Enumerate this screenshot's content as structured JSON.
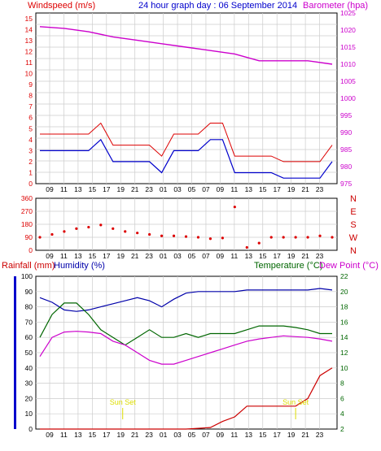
{
  "colors": {
    "wind_avg": "#0000cc",
    "wind_gust": "#dd0000",
    "barometer": "#cc00cc",
    "wind_dir": "#dd0000",
    "rainfall": "#cc0000",
    "humidity": "#0000aa",
    "temperature": "#006600",
    "dew_point": "#cc00cc",
    "sun_set": "#dddd00",
    "grid": "#cccccc"
  },
  "header": {
    "wind_label": "Windspeed (m/s)",
    "title": "24 hour graph day : 06 September 2014",
    "baro_label": "Barometer (hpa)"
  },
  "bottom_header": {
    "rain_label": "Rainfall (mm)",
    "humidity_label": "Humidity (%)",
    "temp_label": "Temperature (°C)",
    "dew_label": "Dew Point (°C)"
  },
  "x_ticks": [
    "09",
    "11",
    "13",
    "15",
    "17",
    "19",
    "21",
    "23",
    "01",
    "03",
    "05",
    "07",
    "09",
    "11",
    "13",
    "15",
    "17",
    "19",
    "21",
    "23"
  ],
  "chart_data": [
    {
      "type": "line",
      "title": "24 hour graph day : 06 September 2014",
      "ylabel": "Windspeed (m/s)",
      "y2label": "Barometer (hpa)",
      "ylim": [
        0,
        15.5
      ],
      "y2lim": [
        975,
        1025
      ],
      "yticks": [
        "0",
        "1",
        "2",
        "3",
        "4",
        "5",
        "6",
        "7",
        "8",
        "9",
        "10",
        "11",
        "12",
        "13",
        "14",
        "15"
      ],
      "y2ticks": [
        "975",
        "980",
        "985",
        "990",
        "995",
        "1000",
        "1005",
        "1010",
        "1015",
        "1020",
        "1025"
      ],
      "series": [
        {
          "name": "Windspeed",
          "x": [
            0,
            1,
            2,
            3,
            4,
            5,
            6,
            7,
            8,
            9,
            10,
            11,
            12,
            13,
            14,
            15,
            16,
            17,
            18,
            19,
            20,
            21,
            22,
            23,
            24
          ],
          "values": [
            3,
            3,
            3,
            3,
            3,
            4,
            2,
            2,
            2,
            2,
            1,
            3,
            3,
            3,
            4,
            4,
            1,
            1,
            1,
            1,
            0.5,
            0.5,
            0.5,
            0.5,
            2
          ]
        },
        {
          "name": "Barometer",
          "x": [
            0,
            2,
            4,
            6,
            8,
            10,
            12,
            14,
            16,
            18,
            20,
            22,
            24
          ],
          "values": [
            1021,
            1020.5,
            1019.5,
            1018,
            1017,
            1016,
            1015,
            1014,
            1013,
            1011,
            1011,
            1011,
            1010
          ]
        }
      ]
    },
    {
      "type": "scatter",
      "ylim": [
        0,
        360
      ],
      "yticks": [
        "0",
        "90",
        "180",
        "270",
        "360"
      ],
      "compass": [
        "N",
        "W",
        "S",
        "E",
        "N"
      ],
      "series": [
        {
          "name": "Wind direction",
          "x": [
            0,
            1,
            2,
            3,
            4,
            5,
            6,
            7,
            8,
            9,
            10,
            11,
            12,
            13,
            14,
            15,
            16,
            17,
            18,
            19,
            20,
            21,
            22,
            23,
            24
          ],
          "values": [
            90,
            110,
            130,
            150,
            160,
            175,
            150,
            130,
            120,
            110,
            100,
            100,
            95,
            90,
            80,
            85,
            300,
            20,
            50,
            90,
            90,
            90,
            90,
            100,
            90
          ]
        }
      ]
    },
    {
      "type": "line",
      "ylabel": "Rainfall (mm)",
      "y2label": "Temperature (°C)",
      "ylim": [
        0,
        100
      ],
      "y2lim": [
        2,
        22
      ],
      "yticks": [
        "0",
        "10",
        "20",
        "30",
        "40",
        "50",
        "60",
        "70",
        "80",
        "90",
        "100"
      ],
      "y2ticks": [
        "2",
        "4",
        "6",
        "8",
        "10",
        "12",
        "14",
        "16",
        "18",
        "20",
        "22"
      ],
      "sun_set_label": "Sun Set",
      "series": [
        {
          "name": "Humidity",
          "x": [
            0,
            1,
            2,
            3,
            4,
            5,
            6,
            7,
            8,
            9,
            10,
            11,
            12,
            13,
            14,
            15,
            16,
            17,
            18,
            19,
            20,
            21,
            22,
            23,
            24
          ],
          "values": [
            86,
            83,
            78,
            77,
            78,
            80,
            82,
            84,
            86,
            84,
            80,
            85,
            89,
            90,
            90,
            90,
            90,
            91,
            91,
            91,
            91,
            91,
            91,
            92,
            91
          ]
        },
        {
          "name": "Temperature",
          "x": [
            0,
            1,
            2,
            3,
            4,
            5,
            6,
            7,
            8,
            9,
            10,
            11,
            12,
            13,
            14,
            15,
            16,
            17,
            18,
            19,
            20,
            21,
            22,
            23,
            24
          ],
          "values": [
            14,
            17,
            18.5,
            18.5,
            17,
            15,
            14,
            13,
            14,
            15,
            14,
            14,
            14.5,
            14,
            14.5,
            14.5,
            14.5,
            15,
            15.5,
            15.5,
            15.5,
            15.3,
            15,
            14.5,
            14.5
          ]
        },
        {
          "name": "Dew Point",
          "x": [
            0,
            1,
            2,
            3,
            4,
            5,
            6,
            7,
            8,
            9,
            10,
            11,
            12,
            13,
            14,
            15,
            16,
            17,
            18,
            19,
            20,
            21,
            22,
            23,
            24
          ],
          "values": [
            11.5,
            14,
            14.7,
            14.8,
            14.7,
            14.5,
            13.5,
            13,
            12,
            11,
            10.5,
            10.5,
            11,
            11.5,
            12,
            12.5,
            13,
            13.5,
            13.8,
            14,
            14.2,
            14.1,
            14,
            13.8,
            13.5
          ]
        },
        {
          "name": "Rainfall",
          "x": [
            0,
            2,
            4,
            6,
            8,
            10,
            12,
            13,
            14,
            15,
            16,
            17,
            18,
            19,
            20,
            21,
            22,
            23,
            24
          ],
          "values": [
            0,
            0,
            0,
            0,
            0,
            0,
            0,
            0.5,
            1,
            5,
            8,
            15,
            15,
            15,
            15,
            15,
            20,
            35,
            40
          ]
        }
      ]
    }
  ]
}
